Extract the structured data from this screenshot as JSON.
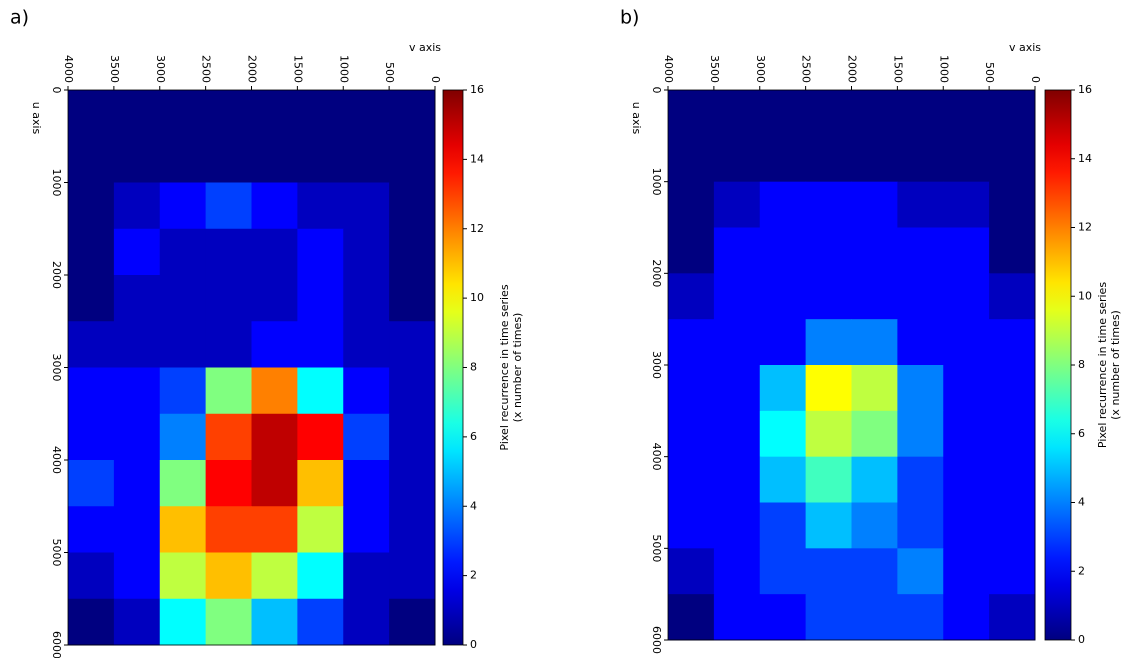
{
  "chart_data": [
    {
      "type": "heatmap",
      "label": "a)",
      "xlabel": "v axis",
      "ylabel": "u axis",
      "colormap": "jet",
      "xlim": [
        4000,
        0
      ],
      "xticks": [
        4000,
        3500,
        3000,
        2500,
        2000,
        1500,
        1000,
        500,
        0
      ],
      "ylim": [
        0,
        6000
      ],
      "yticks": [
        0,
        1000,
        2000,
        3000,
        4000,
        5000,
        6000
      ],
      "x": [
        3750,
        3250,
        2750,
        2250,
        1750,
        1250,
        750,
        250
      ],
      "y": [
        250,
        750,
        1250,
        1750,
        2250,
        2750,
        3250,
        3750,
        4250,
        4750,
        5250,
        5750
      ],
      "values": [
        [
          0,
          0,
          0,
          0,
          0,
          0,
          0,
          0
        ],
        [
          0,
          0,
          0,
          0,
          0,
          0,
          0,
          0
        ],
        [
          0,
          1,
          2,
          3,
          2,
          1,
          1,
          0
        ],
        [
          0,
          2,
          1,
          1,
          1,
          2,
          1,
          0
        ],
        [
          0,
          1,
          1,
          1,
          1,
          2,
          1,
          0
        ],
        [
          1,
          1,
          1,
          1,
          2,
          2,
          1,
          1
        ],
        [
          2,
          2,
          3,
          8,
          12,
          6,
          2,
          1
        ],
        [
          2,
          2,
          4,
          13,
          15,
          14,
          3,
          1
        ],
        [
          3,
          2,
          8,
          14,
          15,
          11,
          2,
          1
        ],
        [
          2,
          2,
          11,
          13,
          13,
          9,
          2,
          1
        ],
        [
          1,
          2,
          9,
          11,
          9,
          6,
          1,
          1
        ],
        [
          0,
          1,
          6,
          8,
          5,
          3,
          1,
          0
        ]
      ],
      "zlim": [
        0,
        16
      ],
      "zticks": [
        0,
        2,
        4,
        6,
        8,
        10,
        12,
        14,
        16
      ],
      "colorbar_label": [
        "Pixel recurrence in time series",
        "(x number of times)"
      ]
    },
    {
      "type": "heatmap",
      "label": "b)",
      "xlabel": "v axis",
      "ylabel": "u axis",
      "colormap": "jet",
      "xlim": [
        4000,
        0
      ],
      "xticks": [
        4000,
        3500,
        3000,
        2500,
        2000,
        1500,
        1000,
        500,
        0
      ],
      "ylim": [
        0,
        6000
      ],
      "yticks": [
        0,
        1000,
        2000,
        3000,
        4000,
        5000,
        6000
      ],
      "x": [
        3750,
        3250,
        2750,
        2250,
        1750,
        1250,
        750,
        250
      ],
      "y": [
        250,
        750,
        1250,
        1750,
        2250,
        2750,
        3250,
        3750,
        4250,
        4750,
        5250,
        5750
      ],
      "values": [
        [
          0,
          0,
          0,
          0,
          0,
          0,
          0,
          0
        ],
        [
          0,
          0,
          0,
          0,
          0,
          0,
          0,
          0
        ],
        [
          0,
          1,
          2,
          2,
          2,
          1,
          1,
          0
        ],
        [
          0,
          2,
          2,
          2,
          2,
          2,
          2,
          0
        ],
        [
          1,
          2,
          2,
          2,
          2,
          2,
          2,
          1
        ],
        [
          2,
          2,
          2,
          4,
          4,
          2,
          2,
          2
        ],
        [
          2,
          2,
          5,
          10,
          9,
          4,
          2,
          2
        ],
        [
          2,
          2,
          6,
          9,
          8,
          4,
          2,
          2
        ],
        [
          2,
          2,
          5,
          7,
          5,
          3,
          2,
          2
        ],
        [
          2,
          2,
          3,
          5,
          4,
          3,
          2,
          2
        ],
        [
          1,
          2,
          3,
          3,
          3,
          4,
          2,
          2
        ],
        [
          0,
          2,
          2,
          3,
          3,
          3,
          2,
          1
        ]
      ],
      "zlim": [
        0,
        16
      ],
      "zticks": [
        0,
        2,
        4,
        6,
        8,
        10,
        12,
        14,
        16
      ],
      "colorbar_label": [
        "Pixel recurrence in time series",
        "(x number of times)"
      ]
    }
  ]
}
